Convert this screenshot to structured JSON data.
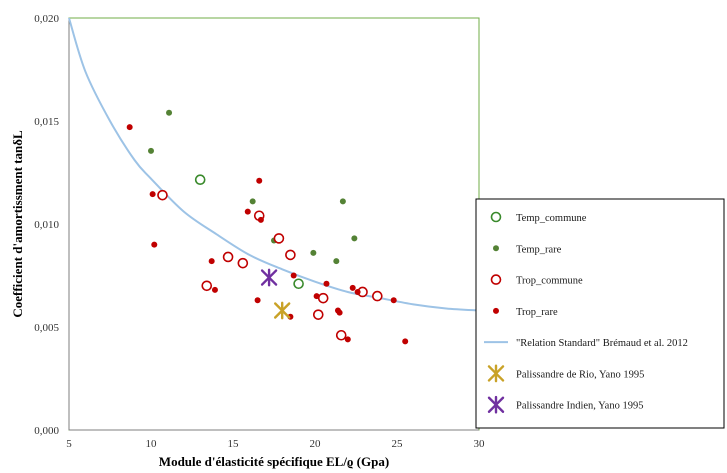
{
  "chart_data": {
    "type": "scatter",
    "xlabel": "Module d'élasticité spécifique EL/ϱ (Gpa)",
    "ylabel": "Coefficient d'amortissment tanδL",
    "xlim": [
      5,
      30
    ],
    "ylim": [
      0,
      0.02
    ],
    "x_ticks": [
      "5",
      "10",
      "15",
      "20",
      "25",
      "30"
    ],
    "y_ticks": [
      "0,000",
      "0,005",
      "0,010",
      "0,015",
      "0,020"
    ],
    "grid": false,
    "legend_position": "right",
    "series": [
      {
        "name": "Temp_commune",
        "marker": "open-circle",
        "color": "#3a8a2c",
        "points": [
          [
            13.0,
            0.01215
          ],
          [
            19.0,
            0.0071
          ]
        ]
      },
      {
        "name": "Temp_rare",
        "marker": "filled-dot",
        "color": "#548235",
        "points": [
          [
            11.1,
            0.0154
          ],
          [
            10.0,
            0.01355
          ],
          [
            16.2,
            0.0111
          ],
          [
            21.7,
            0.0111
          ],
          [
            17.5,
            0.0092
          ],
          [
            22.4,
            0.0093
          ],
          [
            19.9,
            0.0086
          ],
          [
            21.3,
            0.0082
          ]
        ]
      },
      {
        "name": "Trop_commune",
        "marker": "open-circle",
        "color": "#c00000",
        "points": [
          [
            10.7,
            0.0114
          ],
          [
            16.6,
            0.0104
          ],
          [
            17.8,
            0.0093
          ],
          [
            18.5,
            0.0085
          ],
          [
            14.7,
            0.0084
          ],
          [
            15.6,
            0.0081
          ],
          [
            13.4,
            0.007
          ],
          [
            22.9,
            0.0067
          ],
          [
            23.8,
            0.0065
          ],
          [
            20.5,
            0.0064
          ],
          [
            20.2,
            0.0056
          ],
          [
            21.6,
            0.0046
          ]
        ]
      },
      {
        "name": "Trop_rare",
        "marker": "filled-dot",
        "color": "#c00000",
        "points": [
          [
            8.7,
            0.0147
          ],
          [
            16.6,
            0.0121
          ],
          [
            10.1,
            0.01145
          ],
          [
            15.9,
            0.0106
          ],
          [
            16.7,
            0.0102
          ],
          [
            10.2,
            0.009
          ],
          [
            13.7,
            0.0082
          ],
          [
            18.7,
            0.0075
          ],
          [
            20.7,
            0.0071
          ],
          [
            13.9,
            0.0068
          ],
          [
            22.3,
            0.0069
          ],
          [
            22.6,
            0.0067
          ],
          [
            24.8,
            0.0063
          ],
          [
            16.5,
            0.0063
          ],
          [
            20.1,
            0.0065
          ],
          [
            21.4,
            0.0058
          ],
          [
            21.5,
            0.0057
          ],
          [
            18.5,
            0.0055
          ],
          [
            22.0,
            0.0044
          ],
          [
            25.5,
            0.0043
          ]
        ]
      },
      {
        "name": "\"Relation Standard\" Brémaud et al. 2012",
        "marker": "line",
        "color": "#9dc3e6",
        "points": [
          [
            5.0,
            0.02
          ],
          [
            6.0,
            0.0174
          ],
          [
            7.5,
            0.015
          ],
          [
            9.0,
            0.0131
          ],
          [
            10.0,
            0.0122
          ],
          [
            12.0,
            0.0106
          ],
          [
            14.0,
            0.0095
          ],
          [
            16.0,
            0.0085
          ],
          [
            18.0,
            0.0078
          ],
          [
            20.0,
            0.0072
          ],
          [
            22.0,
            0.0067
          ],
          [
            24.0,
            0.0064
          ],
          [
            26.0,
            0.0061
          ],
          [
            28.0,
            0.0059
          ],
          [
            30.0,
            0.0058
          ]
        ]
      },
      {
        "name": "Palissandre de Rio, Yano 1995",
        "marker": "star",
        "color": "#c9a227",
        "points": [
          [
            18.0,
            0.0058
          ]
        ]
      },
      {
        "name": "Palissandre Indien, Yano 1995",
        "marker": "star",
        "color": "#7030a0",
        "points": [
          [
            17.2,
            0.0074
          ]
        ]
      }
    ]
  }
}
